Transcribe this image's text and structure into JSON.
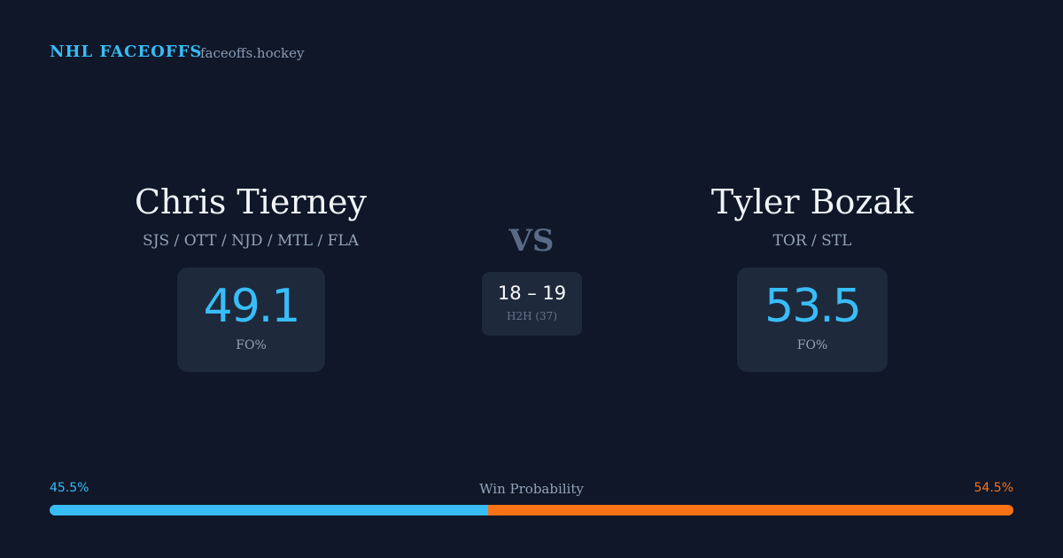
{
  "header": {
    "brand": "NHL FACEOFFS",
    "site": "faceoffs.hockey"
  },
  "players": [
    {
      "name": "Chris Tierney",
      "teams": "SJS / OTT / NJD / MTL / FLA",
      "fo_pct": 49.1,
      "fo_label": "FO%"
    },
    {
      "name": "Tyler Bozak",
      "teams": "TOR / STL",
      "fo_pct": 53.5,
      "fo_label": "FO%"
    }
  ],
  "versus": "VS",
  "head_to_head": {
    "score": "18 – 19",
    "label": "H2H (37)"
  },
  "win_probability": {
    "label": "Win Probability",
    "values": [
      45.5,
      54.5
    ],
    "value_labels": [
      "45.5%",
      "54.5%"
    ],
    "colors": [
      "#38bdf8",
      "#f97316"
    ]
  }
}
